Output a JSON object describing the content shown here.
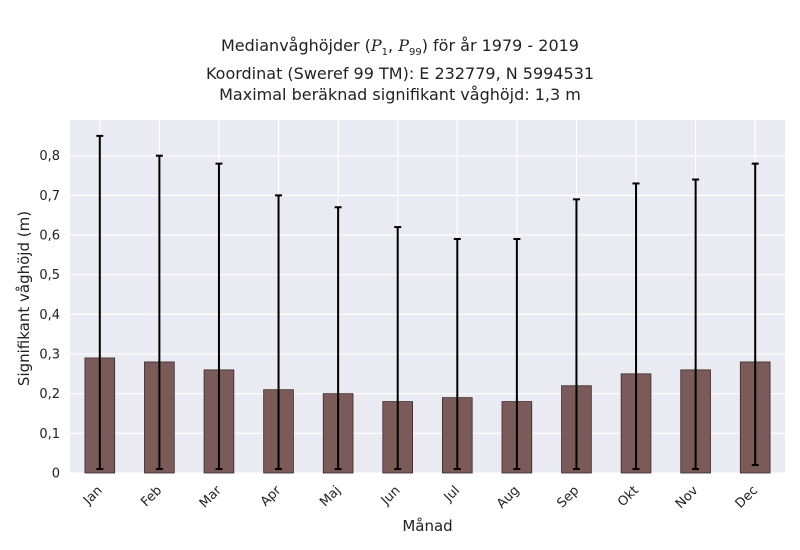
{
  "chart_data": {
    "type": "bar",
    "title_lines": [
      "Medianvåghöjder (P1, P99) för år 1979 - 2019",
      "Koordinat (Sweref 99 TM): E 232779, N 5994531",
      "Maximal beräknad signifikant våghöjd: 1,3 m"
    ],
    "xlabel": "Månad",
    "ylabel": "Signifikant våghöjd (m)",
    "categories": [
      "Jan",
      "Feb",
      "Mar",
      "Apr",
      "Maj",
      "Jun",
      "Jul",
      "Aug",
      "Sep",
      "Okt",
      "Nov",
      "Dec"
    ],
    "values": [
      0.29,
      0.28,
      0.26,
      0.21,
      0.2,
      0.18,
      0.19,
      0.18,
      0.22,
      0.25,
      0.26,
      0.28
    ],
    "error_low": [
      0.01,
      0.01,
      0.01,
      0.01,
      0.01,
      0.01,
      0.01,
      0.01,
      0.01,
      0.01,
      0.01,
      0.02
    ],
    "error_high": [
      0.85,
      0.8,
      0.78,
      0.7,
      0.67,
      0.62,
      0.59,
      0.59,
      0.69,
      0.73,
      0.74,
      0.78
    ],
    "ylim": [
      0,
      0.89
    ],
    "yticks": [
      0,
      0.1,
      0.2,
      0.3,
      0.4,
      0.5,
      0.6,
      0.7,
      0.8
    ],
    "ytick_labels": [
      "0",
      "0,1",
      "0,2",
      "0,3",
      "0,4",
      "0,5",
      "0,6",
      "0,7",
      "0,8"
    ],
    "grid": true,
    "colors": {
      "bar": "#7b5a5a",
      "bar_edge": "#3a2a2a",
      "plot_bg": "#eaeaf2",
      "grid": "#ffffff",
      "error": "#000000"
    }
  }
}
